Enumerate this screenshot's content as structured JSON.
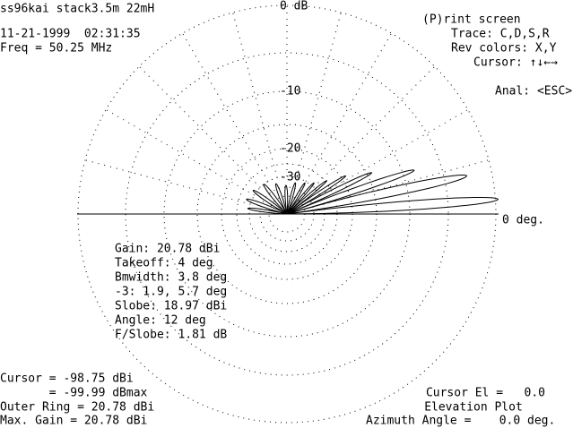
{
  "header": {
    "title": "ss96kai stack3.5m 22mH",
    "datetime": "11-21-1999  02:31:35",
    "frequency": "Freq = 50.25 MHz"
  },
  "menu": {
    "print": "(P)rint screen",
    "trace": "Trace: C,D,S,R",
    "colors": "Rev colors: X,Y",
    "cursor": "Cursor: ↑↓←→",
    "anal": "Anal: <ESC>"
  },
  "plot": {
    "ring_labels": [
      "0 dB",
      "-10",
      "-20",
      "-30"
    ],
    "axis_label": "0 deg."
  },
  "stats": [
    "Gain: 20.78 dBi",
    "Takeoff: 4 deg",
    "Bmwidth: 3.8 deg",
    "-3: 1.9, 5.7 deg",
    "Slobe: 18.97 dBi",
    "Angle: 12 deg",
    "F/Slobe: 1.81 dB"
  ],
  "footer": {
    "cursor": "Cursor = -98.75 dBi",
    "cursor_max": "       = -99.99 dBmax",
    "outer_ring": "Outer Ring = 20.78 dBi",
    "max_gain": "Max. Gain = 20.78 dBi",
    "cursor_el": "Cursor El =   0.0",
    "plot_type": "Elevation Plot",
    "azimuth": "Azimuth Angle =    0.0 deg."
  }
}
